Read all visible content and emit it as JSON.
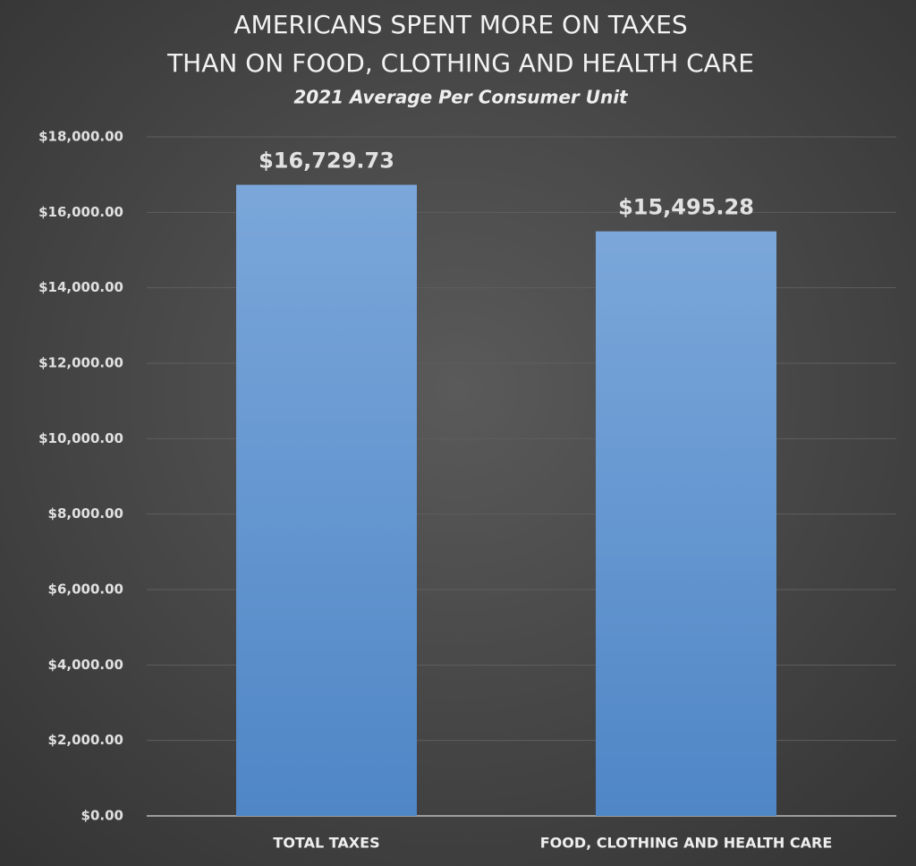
{
  "chart_data": {
    "type": "bar",
    "title": [
      "AMERICANS SPENT MORE ON TAXES",
      "THAN ON FOOD, CLOTHING AND HEALTH CARE"
    ],
    "subtitle": "2021 Average Per Consumer Unit",
    "categories": [
      "TOTAL TAXES",
      "FOOD, CLOTHING AND HEALTH CARE"
    ],
    "values": [
      16729.73,
      15495.28
    ],
    "value_labels": [
      "$16,729.73",
      "$15,495.28"
    ],
    "color": "#5f93d0",
    "ylim": [
      0,
      18000
    ],
    "yticks": [
      {
        "value": 0,
        "label": "$0.00"
      },
      {
        "value": 2000,
        "label": "$2,000.00"
      },
      {
        "value": 4000,
        "label": "$4,000.00"
      },
      {
        "value": 6000,
        "label": "$6,000.00"
      },
      {
        "value": 8000,
        "label": "$8,000.00"
      },
      {
        "value": 10000,
        "label": "$10,000.00"
      },
      {
        "value": 12000,
        "label": "$12,000.00"
      },
      {
        "value": 14000,
        "label": "$14,000.00"
      },
      {
        "value": 16000,
        "label": "$16,000.00"
      },
      {
        "value": 18000,
        "label": "$18,000.00"
      }
    ],
    "grid": true
  }
}
